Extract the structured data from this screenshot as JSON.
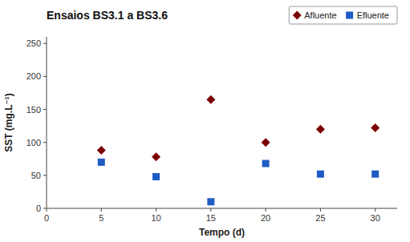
{
  "chart_data": {
    "type": "scatter",
    "title": "Ensaios BS3.1 a BS3.6",
    "xlabel": "Tempo (d)",
    "ylabel": "SST (mg.L⁻¹)",
    "x": [
      5,
      10,
      15,
      20,
      25,
      30
    ],
    "series": [
      {
        "name": "Afluente",
        "color": "#7B0000",
        "marker": "diamond",
        "values": [
          88,
          78,
          165,
          100,
          120,
          122
        ]
      },
      {
        "name": "Efluente",
        "color": "#1F5BC4",
        "marker": "square",
        "values": [
          70,
          48,
          10,
          68,
          52,
          52
        ]
      }
    ],
    "xlim": [
      0,
      32
    ],
    "ylim": [
      0,
      260
    ],
    "xticks": [
      0,
      5,
      10,
      15,
      20,
      25,
      30
    ],
    "yticks": [
      0,
      50,
      100,
      150,
      200,
      250
    ],
    "grid": false,
    "legend": "upper right"
  }
}
